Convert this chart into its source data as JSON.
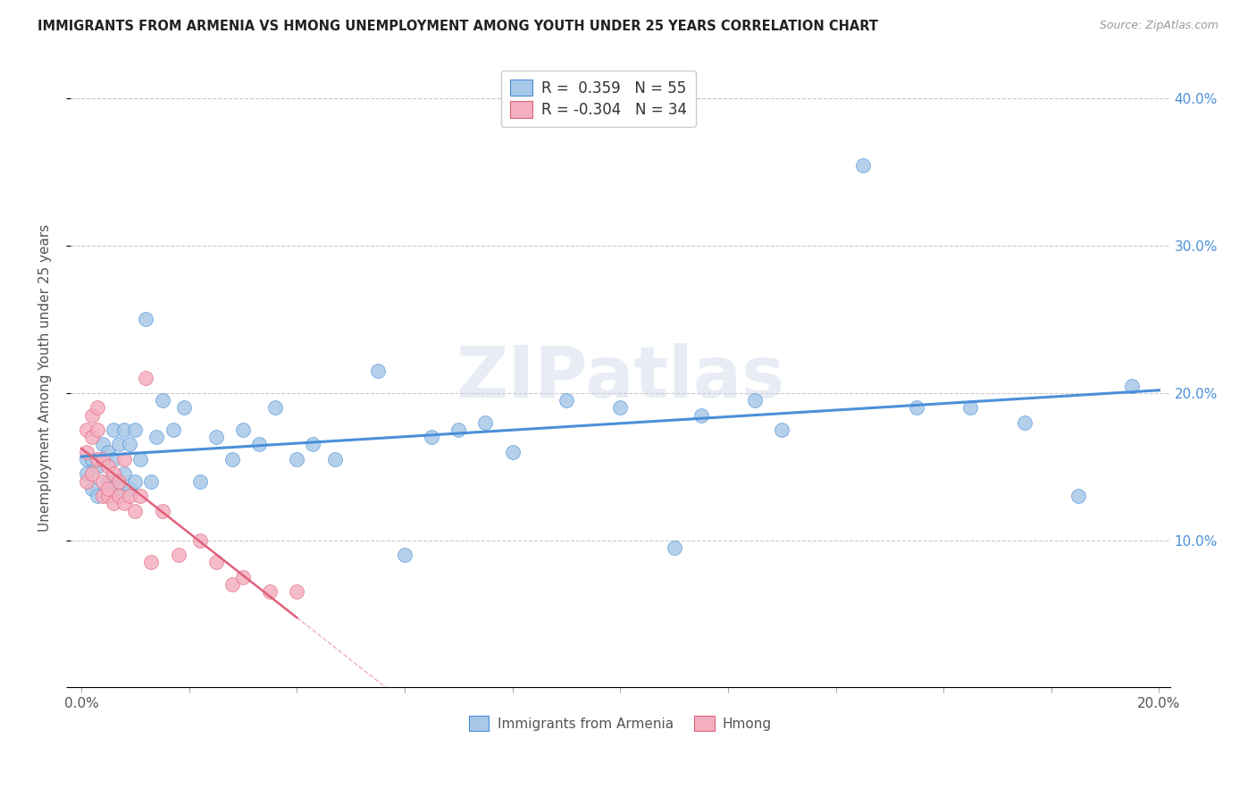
{
  "title": "IMMIGRANTS FROM ARMENIA VS HMONG UNEMPLOYMENT AMONG YOUTH UNDER 25 YEARS CORRELATION CHART",
  "source": "Source: ZipAtlas.com",
  "ylabel": "Unemployment Among Youth under 25 years",
  "R1": 0.359,
  "N1": 55,
  "R2": -0.304,
  "N2": 34,
  "legend_label1": "Immigrants from Armenia",
  "legend_label2": "Hmong",
  "color1": "#a8c8e8",
  "color2": "#f4b0c0",
  "line_color1": "#4a90d9",
  "line_color2": "#e0607a",
  "xlim_min": -0.002,
  "xlim_max": 0.202,
  "ylim_min": 0.0,
  "ylim_max": 0.42,
  "xtick_positions": [
    0.0,
    0.02,
    0.04,
    0.06,
    0.08,
    0.1,
    0.12,
    0.14,
    0.16,
    0.18,
    0.2
  ],
  "xtick_labels": [
    "0.0%",
    "",
    "",
    "",
    "",
    "",
    "",
    "",
    "",
    "",
    "20.0%"
  ],
  "ytick_positions": [
    0.0,
    0.1,
    0.2,
    0.3,
    0.4
  ],
  "ytick_labels_right": [
    "",
    "10.0%",
    "20.0%",
    "30.0%",
    "40.0%"
  ],
  "armenia_x": [
    0.001,
    0.001,
    0.002,
    0.002,
    0.003,
    0.003,
    0.004,
    0.004,
    0.005,
    0.005,
    0.006,
    0.006,
    0.006,
    0.007,
    0.007,
    0.008,
    0.008,
    0.009,
    0.009,
    0.01,
    0.01,
    0.011,
    0.012,
    0.013,
    0.014,
    0.015,
    0.017,
    0.019,
    0.022,
    0.025,
    0.028,
    0.03,
    0.033,
    0.036,
    0.04,
    0.043,
    0.047,
    0.055,
    0.06,
    0.065,
    0.07,
    0.075,
    0.08,
    0.09,
    0.1,
    0.11,
    0.115,
    0.125,
    0.13,
    0.145,
    0.155,
    0.165,
    0.175,
    0.185,
    0.195
  ],
  "armenia_y": [
    0.145,
    0.155,
    0.135,
    0.155,
    0.13,
    0.15,
    0.155,
    0.165,
    0.14,
    0.16,
    0.14,
    0.155,
    0.175,
    0.135,
    0.165,
    0.145,
    0.175,
    0.135,
    0.165,
    0.14,
    0.175,
    0.155,
    0.25,
    0.14,
    0.17,
    0.195,
    0.175,
    0.19,
    0.14,
    0.17,
    0.155,
    0.175,
    0.165,
    0.19,
    0.155,
    0.165,
    0.155,
    0.215,
    0.09,
    0.17,
    0.175,
    0.18,
    0.16,
    0.195,
    0.19,
    0.095,
    0.185,
    0.195,
    0.175,
    0.355,
    0.19,
    0.19,
    0.18,
    0.13,
    0.205
  ],
  "hmong_x": [
    0.001,
    0.001,
    0.001,
    0.002,
    0.002,
    0.002,
    0.003,
    0.003,
    0.003,
    0.004,
    0.004,
    0.004,
    0.005,
    0.005,
    0.005,
    0.006,
    0.006,
    0.007,
    0.007,
    0.008,
    0.008,
    0.009,
    0.01,
    0.011,
    0.012,
    0.013,
    0.015,
    0.018,
    0.022,
    0.025,
    0.028,
    0.03,
    0.035,
    0.04
  ],
  "hmong_y": [
    0.175,
    0.16,
    0.14,
    0.145,
    0.17,
    0.185,
    0.155,
    0.175,
    0.19,
    0.13,
    0.155,
    0.14,
    0.13,
    0.15,
    0.135,
    0.125,
    0.145,
    0.13,
    0.14,
    0.125,
    0.155,
    0.13,
    0.12,
    0.13,
    0.21,
    0.085,
    0.12,
    0.09,
    0.1,
    0.085,
    0.07,
    0.075,
    0.065,
    0.065
  ]
}
